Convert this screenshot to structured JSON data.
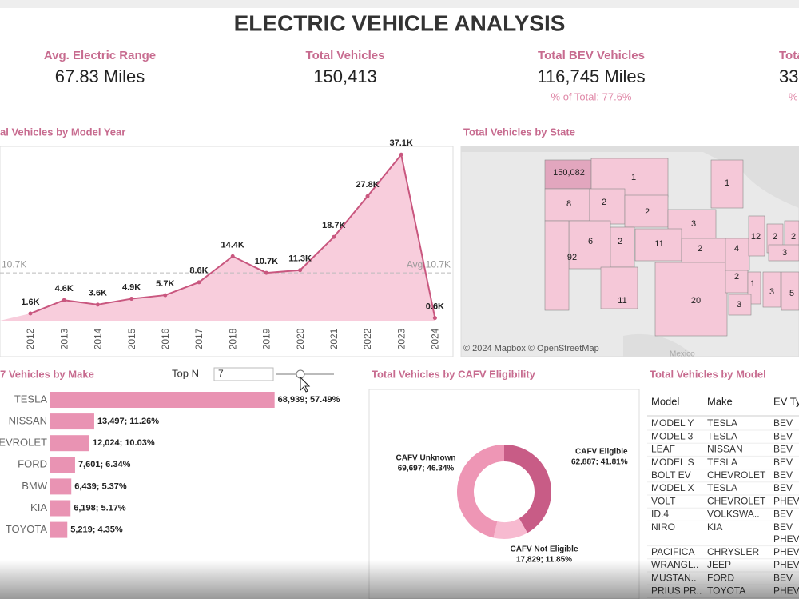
{
  "header": {
    "title": "ELECTRIC VEHICLE ANALYSIS"
  },
  "kpis": [
    {
      "label": "Avg. Electric Range",
      "value": "67.83 Miles"
    },
    {
      "label": "Total Vehicles",
      "value": "150,413"
    },
    {
      "label": "Total BEV Vehicles",
      "value": "116,745 Miles",
      "note": "% of Total: 77.6%"
    },
    {
      "label": "Tota",
      "value": "33",
      "note": "%"
    }
  ],
  "chart_data": [
    {
      "type": "line",
      "title": "al Vehicles by Model Year",
      "categories": [
        "2012",
        "2013",
        "2014",
        "2015",
        "2016",
        "2017",
        "2018",
        "2019",
        "2020",
        "2021",
        "2022",
        "2023",
        "2024"
      ],
      "values": [
        1.6,
        4.6,
        3.6,
        4.9,
        5.7,
        8.6,
        14.4,
        10.7,
        11.3,
        18.7,
        27.8,
        37.1,
        0.6
      ],
      "value_labels": [
        "1.6K",
        "4.6K",
        "3.6K",
        "4.9K",
        "5.7K",
        "8.6K",
        "14.4K",
        "10.7K",
        "11.3K",
        "18.7K",
        "27.8K",
        "37.1K",
        "0.6K"
      ],
      "ylim": [
        0,
        40
      ],
      "color": "#c9577f",
      "area_color": "#f8cddc",
      "average": {
        "value": 10.7,
        "label": "Avg.10.7K",
        "label_left": "10.7K"
      }
    },
    {
      "type": "bar",
      "orientation": "horizontal",
      "title": "7 Vehicles by Make",
      "categories": [
        "TESLA",
        "NISSAN",
        "HEVROLET",
        "FORD",
        "BMW",
        "KIA",
        "TOYOTA"
      ],
      "values": [
        68939,
        13497,
        12024,
        7601,
        6439,
        6198,
        5219
      ],
      "value_labels": [
        "68,939; 57.49%",
        "13,497; 11.26%",
        "12,024; 10.03%",
        "7,601; 6.34%",
        "6,439; 5.37%",
        "6,198; 5.17%",
        "5,219; 4.35%"
      ],
      "xlim": [
        0,
        70000
      ],
      "color": "#e993b3"
    },
    {
      "type": "pie",
      "donut": true,
      "title": "Total Vehicles by CAFV Eligibility",
      "categories": [
        "CAFV Eligible",
        "CAFV Not Eligible",
        "CAFV Unknown"
      ],
      "values": [
        62887,
        17829,
        69697
      ],
      "value_labels": [
        "62,887; 41.81%",
        "17,829; 11.85%",
        "69,697; 46.34%"
      ],
      "colors": [
        "#c85c86",
        "#f7bad0",
        "#ee96b5"
      ]
    }
  ],
  "top_n": {
    "label": "Top N",
    "value": "7"
  },
  "map": {
    "title": "Total Vehicles by State",
    "attribution": "© 2024 Mapbox © OpenStreetMap",
    "country_label": "Mexico",
    "labels": [
      "150,082",
      "1",
      "8",
      "2",
      "1",
      "2",
      "3",
      "6",
      "2",
      "11",
      "2",
      "92",
      "11",
      "20",
      "4",
      "12",
      "2",
      "2",
      "3",
      "2",
      "1",
      "3",
      "5",
      "3"
    ]
  },
  "table": {
    "title": "Total Vehicles by Model",
    "columns": [
      "Model",
      "Make",
      "EV Ty"
    ],
    "rows": [
      {
        "model": "MODEL Y",
        "make": "TESLA",
        "types": [
          "BEV"
        ]
      },
      {
        "model": "MODEL 3",
        "make": "TESLA",
        "types": [
          "BEV"
        ]
      },
      {
        "model": "LEAF",
        "make": "NISSAN",
        "types": [
          "BEV"
        ]
      },
      {
        "model": "MODEL S",
        "make": "TESLA",
        "types": [
          "BEV"
        ]
      },
      {
        "model": "BOLT EV",
        "make": "CHEVROLET",
        "types": [
          "BEV"
        ]
      },
      {
        "model": "MODEL X",
        "make": "TESLA",
        "types": [
          "BEV"
        ]
      },
      {
        "model": "VOLT",
        "make": "CHEVROLET",
        "types": [
          "PHEV"
        ]
      },
      {
        "model": "ID.4",
        "make": "VOLKSWA..",
        "types": [
          "BEV"
        ]
      },
      {
        "model": "NIRO",
        "make": "KIA",
        "types": [
          "BEV",
          "PHEV"
        ]
      },
      {
        "model": "PACIFICA",
        "make": "CHRYSLER",
        "types": [
          "PHEV"
        ]
      },
      {
        "model": "WRANGL..",
        "make": "JEEP",
        "types": [
          "PHEV"
        ]
      },
      {
        "model": "MUSTAN..",
        "make": "FORD",
        "types": [
          "BEV"
        ]
      },
      {
        "model": "PRIUS PR..",
        "make": "TOYOTA",
        "types": [
          "PHEV"
        ]
      }
    ]
  }
}
